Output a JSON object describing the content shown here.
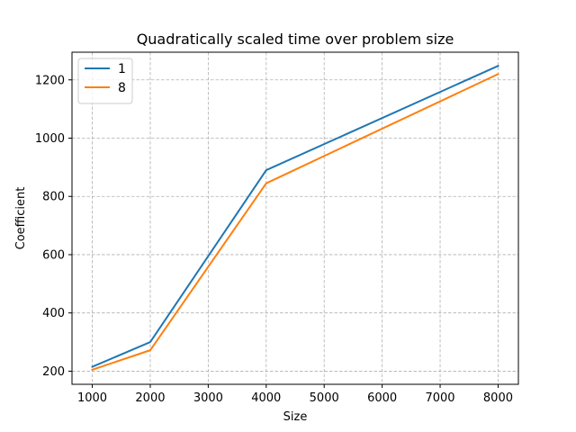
{
  "chart_data": {
    "type": "line",
    "title": "Quadratically scaled time over problem size",
    "xlabel": "Size",
    "ylabel": "Coefficient",
    "x": [
      1000,
      2000,
      4000,
      8000
    ],
    "xlim": [
      650,
      8350
    ],
    "ylim": [
      155,
      1295
    ],
    "xticks": [
      1000,
      2000,
      3000,
      4000,
      5000,
      6000,
      7000,
      8000
    ],
    "yticks": [
      200,
      400,
      600,
      800,
      1000,
      1200
    ],
    "grid": true,
    "legend_position": "top-left",
    "series": [
      {
        "name": "1",
        "color": "#1f77b4",
        "values": [
          215,
          300,
          890,
          1248
        ]
      },
      {
        "name": "8",
        "color": "#ff7f0e",
        "values": [
          205,
          272,
          845,
          1220
        ]
      }
    ]
  }
}
